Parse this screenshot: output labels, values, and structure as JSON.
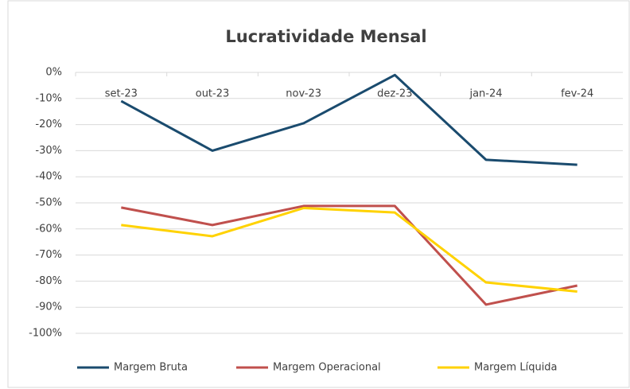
{
  "chart_data": {
    "type": "line",
    "title": "Lucratividade Mensal",
    "categories": [
      "set-23",
      "out-23",
      "nov-23",
      "dez-23",
      "jan-24",
      "fev-24"
    ],
    "series": [
      {
        "name": "Margem Bruta",
        "color": "#1a4b6e",
        "values": [
          -11,
          -30,
          -19.5,
          -1,
          -33.5,
          -35.4
        ]
      },
      {
        "name": "Margem Operacional",
        "color": "#c0504d",
        "values": [
          -51.8,
          -58.5,
          -51.2,
          -51.2,
          -89,
          -81.7
        ]
      },
      {
        "name": "Margem Líquida",
        "color": "#ffd200",
        "values": [
          -58.5,
          -62.8,
          -52,
          -53.7,
          -80.5,
          -84
        ]
      }
    ],
    "ylim": [
      -100,
      0
    ],
    "yticks": [
      {
        "value": 0,
        "label": "0%"
      },
      {
        "value": -10,
        "label": "-10%"
      },
      {
        "value": -20,
        "label": "-20%"
      },
      {
        "value": -30,
        "label": "-30%"
      },
      {
        "value": -40,
        "label": "-40%"
      },
      {
        "value": -50,
        "label": "-50%"
      },
      {
        "value": -60,
        "label": "-60%"
      },
      {
        "value": -70,
        "label": "-70%"
      },
      {
        "value": -80,
        "label": "-80%"
      },
      {
        "value": -90,
        "label": "-90%"
      },
      {
        "value": -100,
        "label": "-100%"
      }
    ],
    "grid": true,
    "legend": "bottom"
  }
}
